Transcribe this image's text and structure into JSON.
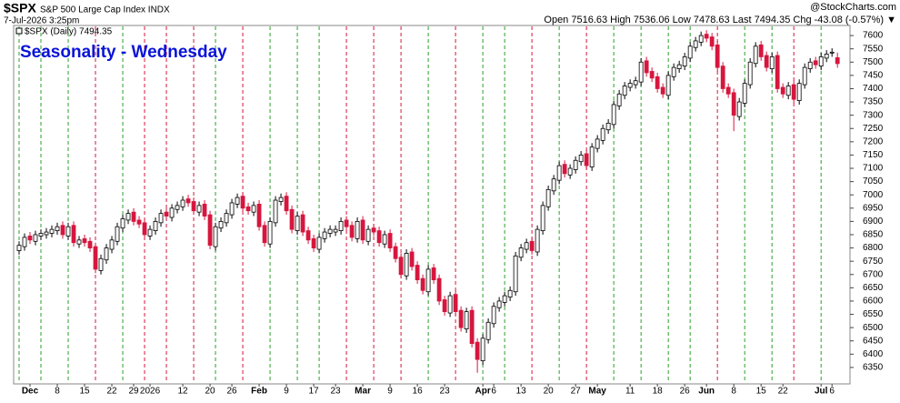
{
  "header": {
    "symbol": "$SPX",
    "name": "S&P 500 Large Cap Index INDX",
    "date": "7-Jul-2026 3:25pm",
    "quote": "Open 7516.63  High 7536.06  Low 7478.63  Last 7494.35  Chg -43.08 (-0.57%) ▼",
    "brand": "@StockCharts.com"
  },
  "chart_data": {
    "type": "candlestick",
    "title": "Seasonality - Wednesday",
    "legend": "$SPX (Daily) 7494.35",
    "open": [
      6790,
      6805,
      6845,
      6825,
      6845,
      6850,
      6855,
      6865,
      6885,
      6845,
      6885,
      6815,
      6835,
      6825,
      6805,
      6715,
      6755,
      6795,
      6825,
      6875,
      6905,
      6935,
      6905,
      6895,
      6845,
      6865,
      6895,
      6935,
      6915,
      6945,
      6955,
      6985,
      6975,
      6935,
      6965,
      6925,
      6805,
      6875,
      6895,
      6925,
      6965,
      6995,
      6955,
      6935,
      6965,
      6885,
      6815,
      6895,
      6975,
      6995,
      6945,
      6865,
      6925,
      6865,
      6835,
      6795,
      6835,
      6855,
      6860,
      6865,
      6905,
      6885,
      6835,
      6905,
      6825,
      6875,
      6865,
      6815,
      6855,
      6805,
      6765,
      6695,
      6785,
      6735,
      6685,
      6635,
      6725,
      6685,
      6605,
      6555,
      6625,
      6565,
      6495,
      6565,
      6445,
      6375,
      6455,
      6515,
      6575,
      6595,
      6615,
      6635,
      6765,
      6795,
      6825,
      6785,
      6865,
      6955,
      7015,
      7055,
      7115,
      7075,
      7095,
      7125,
      7155,
      7105,
      7175,
      7205,
      7245,
      7265,
      7335,
      7375,
      7405,
      7415,
      7425,
      7505,
      7465,
      7445,
      7405,
      7375,
      7445,
      7475,
      7485,
      7515,
      7555,
      7575,
      7605,
      7595,
      7565,
      7485,
      7405,
      7385,
      7295,
      7345,
      7415,
      7495,
      7565,
      7525,
      7475,
      7525,
      7405,
      7375,
      7415,
      7355,
      7415,
      7475,
      7505,
      7485,
      7515,
      7535,
      7516.63
    ],
    "high": [
      6825,
      6855,
      6860,
      6865,
      6870,
      6875,
      6885,
      6895,
      6900,
      6895,
      6900,
      6845,
      6850,
      6840,
      6820,
      6775,
      6815,
      6845,
      6895,
      6925,
      6945,
      6950,
      6920,
      6910,
      6885,
      6915,
      6945,
      6950,
      6965,
      6975,
      6995,
      7000,
      6990,
      6975,
      6980,
      6940,
      6895,
      6915,
      6945,
      6985,
      7005,
      7010,
      6970,
      6975,
      6980,
      6900,
      6915,
      6995,
      7005,
      7010,
      6960,
      6935,
      6940,
      6880,
      6850,
      6855,
      6875,
      6885,
      6885,
      6915,
      6920,
      6900,
      6915,
      6920,
      6885,
      6890,
      6880,
      6865,
      6870,
      6820,
      6780,
      6795,
      6800,
      6750,
      6700,
      6735,
      6740,
      6700,
      6620,
      6635,
      6640,
      6580,
      6575,
      6580,
      6460,
      6475,
      6535,
      6595,
      6615,
      6635,
      6655,
      6785,
      6815,
      6835,
      6840,
      6885,
      6975,
      7035,
      7075,
      7125,
      7130,
      7115,
      7145,
      7165,
      7170,
      7195,
      7225,
      7265,
      7285,
      7355,
      7395,
      7425,
      7435,
      7445,
      7515,
      7520,
      7480,
      7460,
      7420,
      7465,
      7495,
      7505,
      7535,
      7575,
      7595,
      7615,
      7620,
      7610,
      7580,
      7500,
      7420,
      7400,
      7365,
      7435,
      7515,
      7575,
      7580,
      7540,
      7535,
      7540,
      7420,
      7425,
      7430,
      7435,
      7495,
      7515,
      7520,
      7535,
      7545,
      7552,
      7536.06
    ],
    "low": [
      6775,
      6790,
      6815,
      6810,
      6830,
      6835,
      6840,
      6850,
      6835,
      6830,
      6805,
      6800,
      6805,
      6785,
      6705,
      6700,
      6740,
      6780,
      6810,
      6860,
      6890,
      6885,
      6875,
      6835,
      6830,
      6850,
      6880,
      6905,
      6900,
      6930,
      6940,
      6955,
      6925,
      6920,
      6905,
      6795,
      6790,
      6860,
      6880,
      6910,
      6950,
      6935,
      6925,
      6920,
      6865,
      6805,
      6800,
      6880,
      6960,
      6925,
      6855,
      6850,
      6845,
      6815,
      6785,
      6780,
      6820,
      6840,
      6845,
      6850,
      6865,
      6825,
      6820,
      6815,
      6810,
      6845,
      6805,
      6800,
      6785,
      6745,
      6685,
      6680,
      6715,
      6665,
      6625,
      6620,
      6665,
      6585,
      6545,
      6540,
      6545,
      6485,
      6480,
      6425,
      6330,
      6360,
      6440,
      6500,
      6560,
      6580,
      6600,
      6620,
      6750,
      6780,
      6775,
      6770,
      6850,
      6940,
      7000,
      7040,
      7065,
      7060,
      7080,
      7110,
      7095,
      7090,
      7160,
      7190,
      7230,
      7250,
      7320,
      7360,
      7390,
      7400,
      7410,
      7445,
      7425,
      7385,
      7365,
      7360,
      7430,
      7460,
      7470,
      7500,
      7540,
      7560,
      7575,
      7545,
      7465,
      7385,
      7365,
      7240,
      7280,
      7330,
      7400,
      7480,
      7505,
      7465,
      7460,
      7385,
      7365,
      7360,
      7345,
      7340,
      7400,
      7460,
      7475,
      7470,
      7500,
      7520,
      7478.63
    ],
    "close": [
      6810,
      6840,
      6830,
      6850,
      6855,
      6860,
      6870,
      6880,
      6850,
      6880,
      6820,
      6830,
      6820,
      6800,
      6720,
      6760,
      6800,
      6830,
      6880,
      6910,
      6930,
      6900,
      6890,
      6850,
      6870,
      6900,
      6930,
      6920,
      6950,
      6960,
      6980,
      6970,
      6940,
      6960,
      6920,
      6810,
      6880,
      6900,
      6930,
      6970,
      6990,
      6950,
      6940,
      6960,
      6880,
      6820,
      6900,
      6980,
      6990,
      6940,
      6870,
      6920,
      6860,
      6830,
      6800,
      6840,
      6860,
      6870,
      6870,
      6900,
      6880,
      6840,
      6900,
      6830,
      6870,
      6860,
      6820,
      6850,
      6800,
      6760,
      6700,
      6780,
      6730,
      6680,
      6640,
      6720,
      6680,
      6600,
      6560,
      6620,
      6560,
      6500,
      6560,
      6440,
      6380,
      6460,
      6520,
      6580,
      6600,
      6620,
      6640,
      6770,
      6800,
      6820,
      6790,
      6870,
      6960,
      7020,
      7060,
      7110,
      7080,
      7100,
      7130,
      7150,
      7110,
      7180,
      7210,
      7250,
      7270,
      7340,
      7380,
      7410,
      7420,
      7430,
      7500,
      7460,
      7440,
      7400,
      7380,
      7450,
      7480,
      7490,
      7520,
      7560,
      7580,
      7600,
      7590,
      7560,
      7480,
      7400,
      7380,
      7300,
      7350,
      7420,
      7500,
      7560,
      7520,
      7480,
      7520,
      7400,
      7380,
      7410,
      7360,
      7420,
      7480,
      7500,
      7490,
      7520,
      7530,
      7537.43,
      7494.35
    ],
    "wednesdays": [
      0,
      4,
      9,
      14,
      19,
      23,
      27,
      32,
      36,
      41,
      46,
      51,
      55,
      60,
      65,
      70,
      75,
      80,
      85,
      89,
      94,
      99,
      104,
      109,
      114,
      119,
      123,
      128,
      133,
      138,
      142,
      147
    ],
    "up_color": "#ffffff",
    "down_color": "#d6163e",
    "up_line_color": "#2aa02a",
    "down_line_color": "#d6163e",
    "xlim": [
      -1,
      152.3
    ],
    "xticks": [
      {
        "value": 2,
        "label": "Dec"
      },
      {
        "value": 7,
        "label": "8"
      },
      {
        "value": 12,
        "label": "15"
      },
      {
        "value": 17,
        "label": "22"
      },
      {
        "value": 21,
        "label": "29"
      },
      {
        "value": 24,
        "label": "2026"
      },
      {
        "value": 30,
        "label": "12"
      },
      {
        "value": 35,
        "label": "20"
      },
      {
        "value": 39,
        "label": "26"
      },
      {
        "value": 44,
        "label": "Feb"
      },
      {
        "value": 49,
        "label": "9"
      },
      {
        "value": 54,
        "label": "17"
      },
      {
        "value": 58,
        "label": "23"
      },
      {
        "value": 63,
        "label": "Mar"
      },
      {
        "value": 68,
        "label": "9"
      },
      {
        "value": 73,
        "label": "16"
      },
      {
        "value": 78,
        "label": "23"
      },
      {
        "value": 85,
        "label": "Apr"
      },
      {
        "value": 87,
        "label": "6"
      },
      {
        "value": 92,
        "label": "13"
      },
      {
        "value": 97,
        "label": "20"
      },
      {
        "value": 102,
        "label": "27"
      },
      {
        "value": 106,
        "label": "May"
      },
      {
        "value": 112,
        "label": "11"
      },
      {
        "value": 117,
        "label": "18"
      },
      {
        "value": 122,
        "label": "26"
      },
      {
        "value": 126,
        "label": "Jun"
      },
      {
        "value": 131,
        "label": "8"
      },
      {
        "value": 136,
        "label": "15"
      },
      {
        "value": 140,
        "label": "22"
      },
      {
        "value": 147,
        "label": "Jul"
      },
      {
        "value": 149,
        "label": "6"
      }
    ],
    "ylim": [
      6288,
      7638
    ],
    "yticks": [
      6350,
      6400,
      6450,
      6500,
      6550,
      6600,
      6650,
      6700,
      6750,
      6800,
      6850,
      6900,
      6950,
      7000,
      7050,
      7100,
      7150,
      7200,
      7250,
      7300,
      7350,
      7400,
      7450,
      7500,
      7550,
      7600
    ]
  }
}
